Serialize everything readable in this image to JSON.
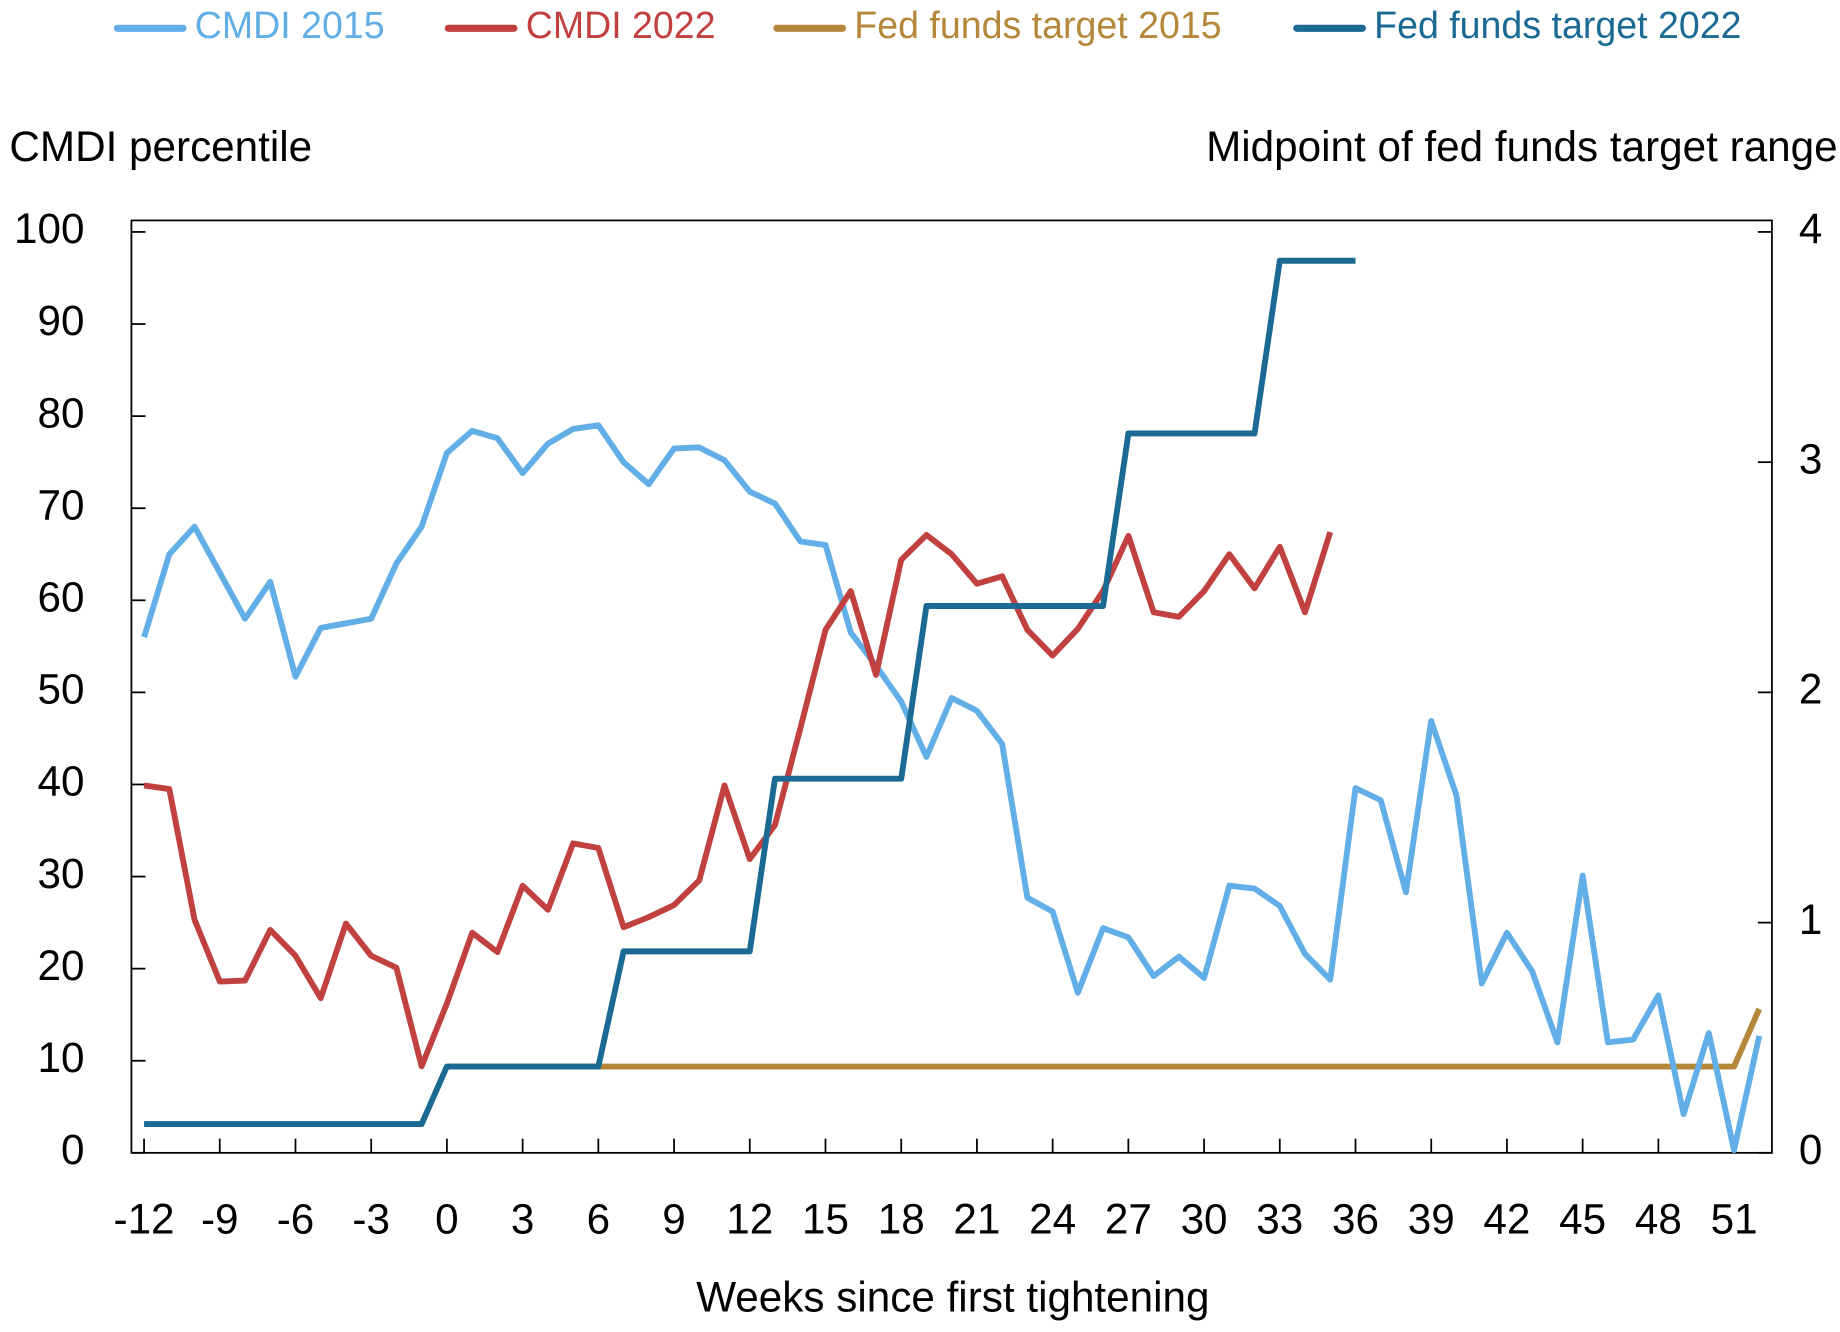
{
  "chart_data": {
    "type": "line",
    "y_label": "CMDI percentile",
    "y2_label": "Midpoint of fed funds target range",
    "x_label": "Weeks since first tightening",
    "x": [
      -12,
      -11,
      -10,
      -9,
      -8,
      -7,
      -6,
      -5,
      -4,
      -3,
      -2,
      -1,
      0,
      1,
      2,
      3,
      4,
      5,
      6,
      7,
      8,
      9,
      10,
      11,
      12,
      13,
      14,
      15,
      16,
      17,
      18,
      19,
      20,
      21,
      22,
      23,
      24,
      25,
      26,
      27,
      28,
      29,
      30,
      31,
      32,
      33,
      34,
      35,
      36,
      37,
      38,
      39,
      40,
      41,
      42,
      43,
      44,
      45,
      46,
      47,
      48,
      49,
      50,
      51,
      52
    ],
    "xlim": [
      -12.5,
      52.5
    ],
    "xticks": [
      -12,
      -9,
      -6,
      -3,
      0,
      3,
      6,
      9,
      12,
      15,
      18,
      21,
      24,
      27,
      30,
      33,
      36,
      39,
      42,
      45,
      48,
      51
    ],
    "ylim": [
      0,
      101.25
    ],
    "yticks": [
      0,
      10,
      20,
      30,
      40,
      50,
      60,
      70,
      80,
      90,
      100
    ],
    "y2lim": [
      0,
      4.05
    ],
    "y2ticks": [
      0,
      1,
      2,
      3,
      4
    ],
    "legend": "top",
    "series": [
      {
        "name": "CMDI 2015",
        "color": "#62aee6",
        "values": [
          56,
          65,
          68,
          63,
          58,
          62,
          51.7,
          57,
          57.5,
          58,
          64,
          68,
          76,
          78.4,
          77.6,
          73.8,
          77,
          78.6,
          79,
          75,
          72.6,
          76.5,
          76.6,
          75.2,
          71.8,
          70.5,
          66.4,
          66,
          56.5,
          52.9,
          49,
          43,
          49.4,
          48,
          44.4,
          27.7,
          26.2,
          17.4,
          24.4,
          23.4,
          19.2,
          21.3,
          19,
          29,
          28.7,
          26.8,
          21.6,
          18.8,
          39.6,
          38.3,
          28.3,
          46.9,
          38.8,
          18.4,
          23.9,
          19.7,
          12,
          30.1,
          12,
          12.3,
          17.1,
          4.2,
          13,
          0.3,
          12.7
        ]
      },
      {
        "name": "CMDI 2022",
        "color": "#c0413f",
        "values": [
          39.9,
          39.5,
          25.3,
          18.6,
          18.7,
          24.2,
          21.4,
          16.8,
          24.9,
          21.4,
          20.1,
          9.4,
          16.2,
          23.9,
          21.8,
          29,
          26.4,
          33.6,
          33.1,
          24.5,
          25.6,
          26.9,
          29.6,
          39.9,
          31.9,
          35.6,
          46.1,
          56.8,
          61,
          51.9,
          64.4,
          67.1,
          65,
          61.8,
          62.6,
          56.8,
          54,
          56.9,
          61,
          67,
          58.7,
          58.2,
          61,
          65,
          61.3,
          65.8,
          58.7,
          67.4,
          null,
          null,
          null,
          null,
          null,
          null,
          null,
          null,
          null,
          null,
          null,
          null,
          null,
          null,
          null,
          null,
          null
        ]
      },
      {
        "name": "Fed funds target 2015",
        "color": "#b5873a",
        "axis": "y2",
        "values": [
          null,
          null,
          null,
          null,
          null,
          null,
          null,
          null,
          null,
          null,
          null,
          null,
          0.375,
          0.375,
          0.375,
          0.375,
          0.375,
          0.375,
          0.375,
          0.375,
          0.375,
          0.375,
          0.375,
          0.375,
          0.375,
          0.375,
          0.375,
          0.375,
          0.375,
          0.375,
          0.375,
          0.375,
          0.375,
          0.375,
          0.375,
          0.375,
          0.375,
          0.375,
          0.375,
          0.375,
          0.375,
          0.375,
          0.375,
          0.375,
          0.375,
          0.375,
          0.375,
          0.375,
          0.375,
          0.375,
          0.375,
          0.375,
          0.375,
          0.375,
          0.375,
          0.375,
          0.375,
          0.375,
          0.375,
          0.375,
          0.375,
          0.375,
          0.375,
          0.375,
          0.625
        ]
      },
      {
        "name": "Fed funds target 2022",
        "color": "#1a6a94",
        "axis": "y2",
        "values": [
          0.125,
          0.125,
          0.125,
          0.125,
          0.125,
          0.125,
          0.125,
          0.125,
          0.125,
          0.125,
          0.125,
          0.125,
          0.375,
          0.375,
          0.375,
          0.375,
          0.375,
          0.375,
          0.375,
          0.875,
          0.875,
          0.875,
          0.875,
          0.875,
          0.875,
          1.625,
          1.625,
          1.625,
          1.625,
          1.625,
          1.625,
          2.375,
          2.375,
          2.375,
          2.375,
          2.375,
          2.375,
          2.375,
          2.375,
          3.125,
          3.125,
          3.125,
          3.125,
          3.125,
          3.125,
          3.875,
          3.875,
          3.875,
          3.875,
          null,
          null,
          null,
          null,
          null,
          null,
          null,
          null,
          null,
          null,
          null,
          null,
          null,
          null,
          null,
          null
        ]
      }
    ]
  }
}
